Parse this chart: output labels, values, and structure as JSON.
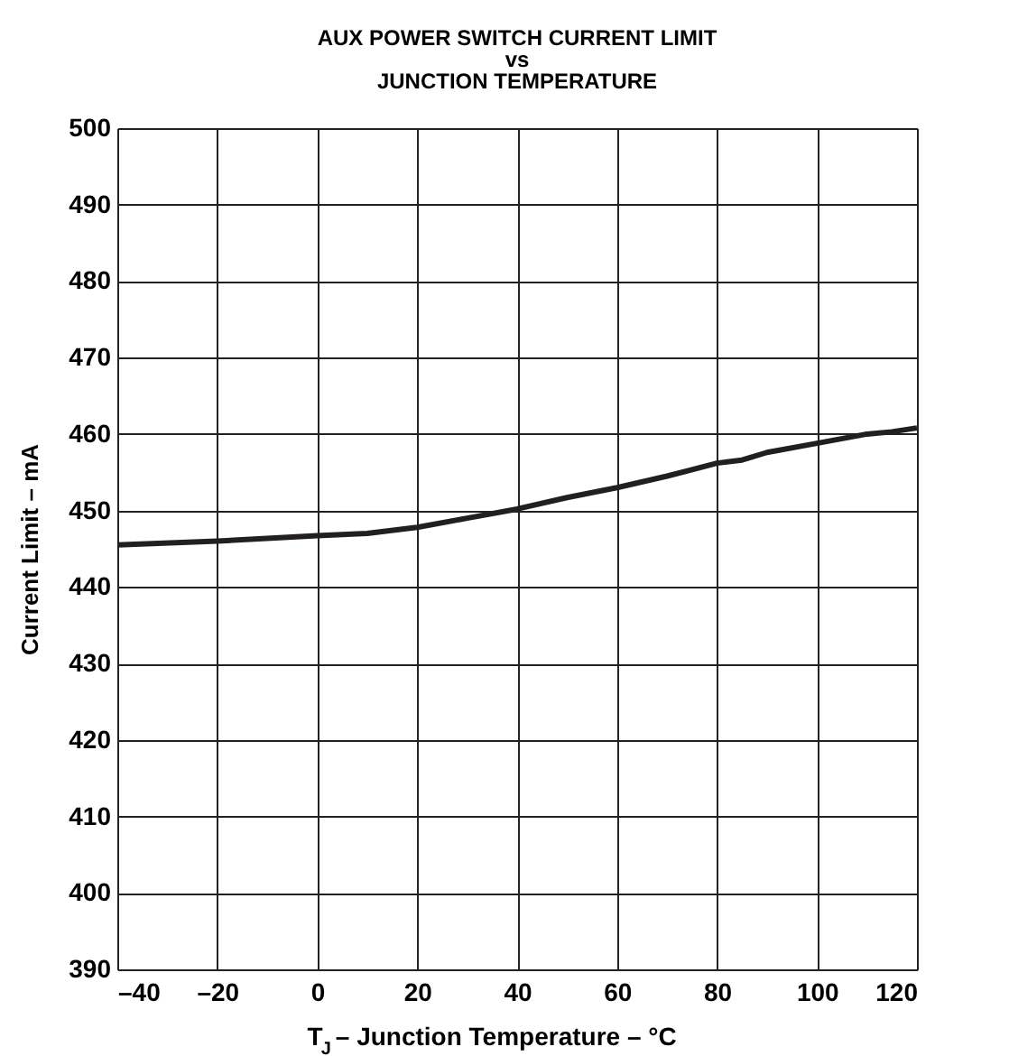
{
  "chart_data": {
    "type": "line",
    "title": "AUX POWER SWITCH CURRENT LIMIT\nvs\nJUNCTION TEMPERATURE",
    "xlabel": "T$_{J}$ – Junction Temperature – °C",
    "ylabel": "Current Limit – mA",
    "x": [
      -40,
      -20,
      0,
      10,
      20,
      30,
      40,
      50,
      60,
      70,
      80,
      85,
      90,
      100,
      110,
      115,
      120
    ],
    "series": [
      {
        "color": "#231f20",
        "values": [
          445.5,
          446,
          446.7,
          447,
          447.8,
          449,
          450.2,
          451.7,
          453,
          454.5,
          456.2,
          456.6,
          457.6,
          458.8,
          460,
          460.3,
          460.8
        ]
      }
    ],
    "xlim": [
      -40,
      120
    ],
    "xticks": [
      {
        "value": -40,
        "label": "–40"
      },
      {
        "value": -20,
        "label": "–20"
      },
      0,
      20,
      40,
      60,
      80,
      100,
      120
    ],
    "ylim": [
      390,
      500
    ],
    "yticks": [
      390,
      400,
      410,
      420,
      430,
      440,
      450,
      460,
      470,
      480,
      490,
      500
    ],
    "grid": true,
    "legend": false,
    "marker": "none",
    "line_style": "solid"
  }
}
